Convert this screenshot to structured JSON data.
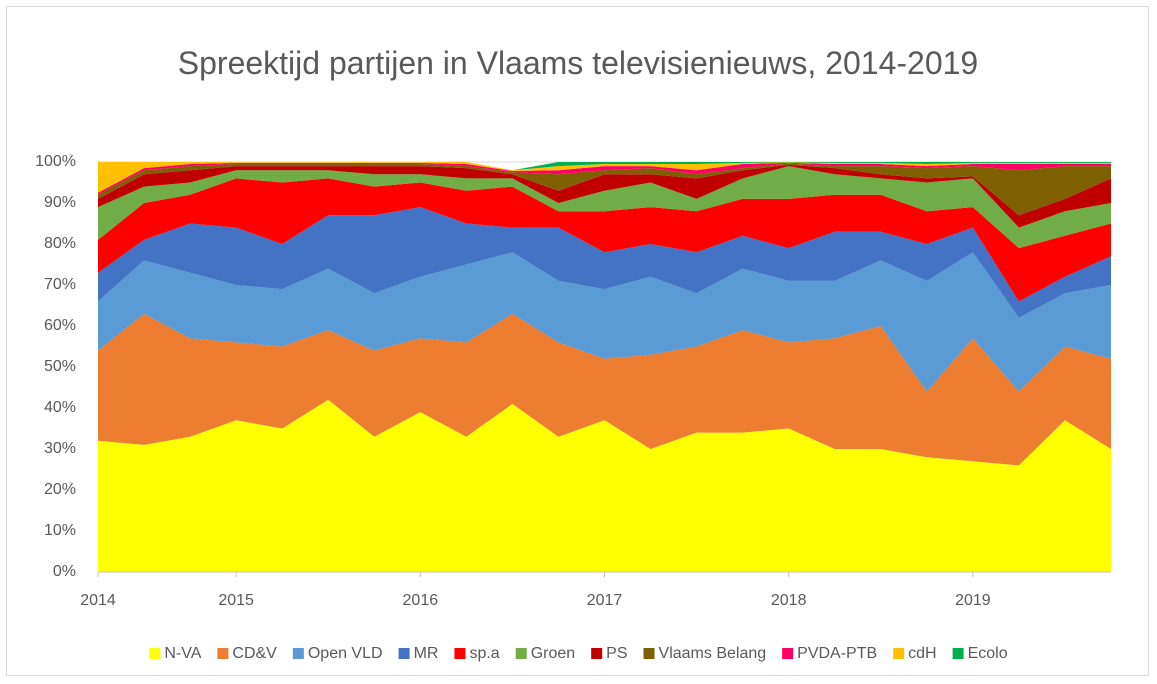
{
  "chart_data": {
    "type": "stacked_area",
    "title": "Spreektijd partijen in Vlaams televisienieuws, 2014-2019",
    "categories": [
      "2014",
      null,
      null,
      "2015",
      null,
      null,
      null,
      "2016",
      null,
      null,
      null,
      "2017",
      null,
      null,
      null,
      "2018",
      null,
      null,
      null,
      "2019",
      null,
      null,
      null
    ],
    "series": [
      {
        "name": "N-VA",
        "color": "#ffff00",
        "values": [
          32,
          31,
          33,
          37,
          35,
          42,
          33,
          39,
          33,
          41,
          33,
          37,
          30,
          34,
          34,
          35,
          30,
          30,
          28,
          27,
          26,
          37,
          30
        ]
      },
      {
        "name": "CD&V",
        "color": "#ed7d31",
        "values": [
          22,
          32,
          24,
          19,
          20,
          17,
          21,
          18,
          23,
          22,
          23,
          15,
          23,
          21,
          25,
          21,
          27,
          30,
          16,
          30,
          18,
          18,
          22
        ]
      },
      {
        "name": "Open VLD",
        "color": "#5b9bd5",
        "values": [
          12,
          13,
          16,
          14,
          14,
          15,
          14,
          15,
          19,
          15,
          15,
          17,
          19,
          13,
          15,
          15,
          14,
          16,
          27,
          21,
          18,
          13,
          18
        ]
      },
      {
        "name": "MR",
        "color": "#4472c4",
        "values": [
          7,
          5,
          12,
          14,
          11,
          13,
          19,
          17,
          10,
          6,
          13,
          9,
          8,
          10,
          8,
          8,
          12,
          7,
          9,
          6,
          4,
          4,
          7
        ]
      },
      {
        "name": "sp.a",
        "color": "#ff0000",
        "values": [
          8,
          9,
          7,
          12,
          15,
          9,
          7,
          6,
          8,
          10,
          4,
          10,
          9,
          10,
          9,
          12,
          9,
          9,
          8,
          5,
          13,
          10,
          8
        ]
      },
      {
        "name": "Groen",
        "color": "#70ad47",
        "values": [
          8,
          4,
          3,
          2,
          3,
          2,
          3,
          2,
          3,
          2,
          2,
          5,
          6,
          3,
          5,
          8,
          5,
          4,
          7,
          7,
          5,
          6,
          5
        ]
      },
      {
        "name": "PS",
        "color": "#c00000",
        "values": [
          2,
          3,
          3,
          1,
          1,
          1,
          2,
          2,
          2.5,
          1,
          3,
          4,
          2,
          5,
          2,
          0.3,
          1.5,
          1,
          1,
          0.5,
          3,
          3,
          6
        ]
      },
      {
        "name": "Vlaams Belang",
        "color": "#7f6000",
        "values": [
          1,
          1,
          1,
          0.5,
          0.5,
          0.5,
          0.5,
          0.5,
          0.5,
          0.5,
          4,
          1,
          1.5,
          1,
          0.5,
          0.3,
          0.5,
          2,
          2.5,
          2.5,
          11,
          8,
          3
        ]
      },
      {
        "name": "PVDA-PTB",
        "color": "#ff0066",
        "values": [
          0.5,
          0.5,
          0.5,
          0.3,
          0.3,
          0.3,
          0.3,
          0.3,
          0.5,
          0.3,
          1,
          1,
          0.5,
          1,
          1,
          0.2,
          0.5,
          0.5,
          0.5,
          0.5,
          1.5,
          0.5,
          0.5
        ]
      },
      {
        "name": "cdH",
        "color": "#ffc000",
        "values": [
          7.5,
          1.5,
          0.5,
          0.2,
          0.2,
          0.2,
          0.2,
          0.2,
          0.5,
          0.2,
          1,
          0.5,
          0.5,
          1.5,
          0.3,
          0.1,
          0.3,
          0.3,
          0.5,
          0.3,
          0.3,
          0.3,
          0.3
        ]
      },
      {
        "name": "Ecolo",
        "color": "#00b050",
        "values": [
          0,
          0,
          0,
          0,
          0,
          0,
          0,
          0,
          0,
          0,
          1,
          0.5,
          0.5,
          0.5,
          0.2,
          0.1,
          0.2,
          0.2,
          0.5,
          0.2,
          0.2,
          0.2,
          0.2
        ]
      }
    ],
    "ylim": [
      0,
      100
    ],
    "yticks": [
      {
        "value": 0,
        "label": "0%"
      },
      {
        "value": 10,
        "label": "10%"
      },
      {
        "value": 20,
        "label": "20%"
      },
      {
        "value": 30,
        "label": "30%"
      },
      {
        "value": 40,
        "label": "40%"
      },
      {
        "value": 50,
        "label": "50%"
      },
      {
        "value": 60,
        "label": "60%"
      },
      {
        "value": 70,
        "label": "70%"
      },
      {
        "value": 80,
        "label": "80%"
      },
      {
        "value": 90,
        "label": "90%"
      },
      {
        "value": 100,
        "label": "100%"
      }
    ],
    "grid": true,
    "legend": "bottom"
  }
}
